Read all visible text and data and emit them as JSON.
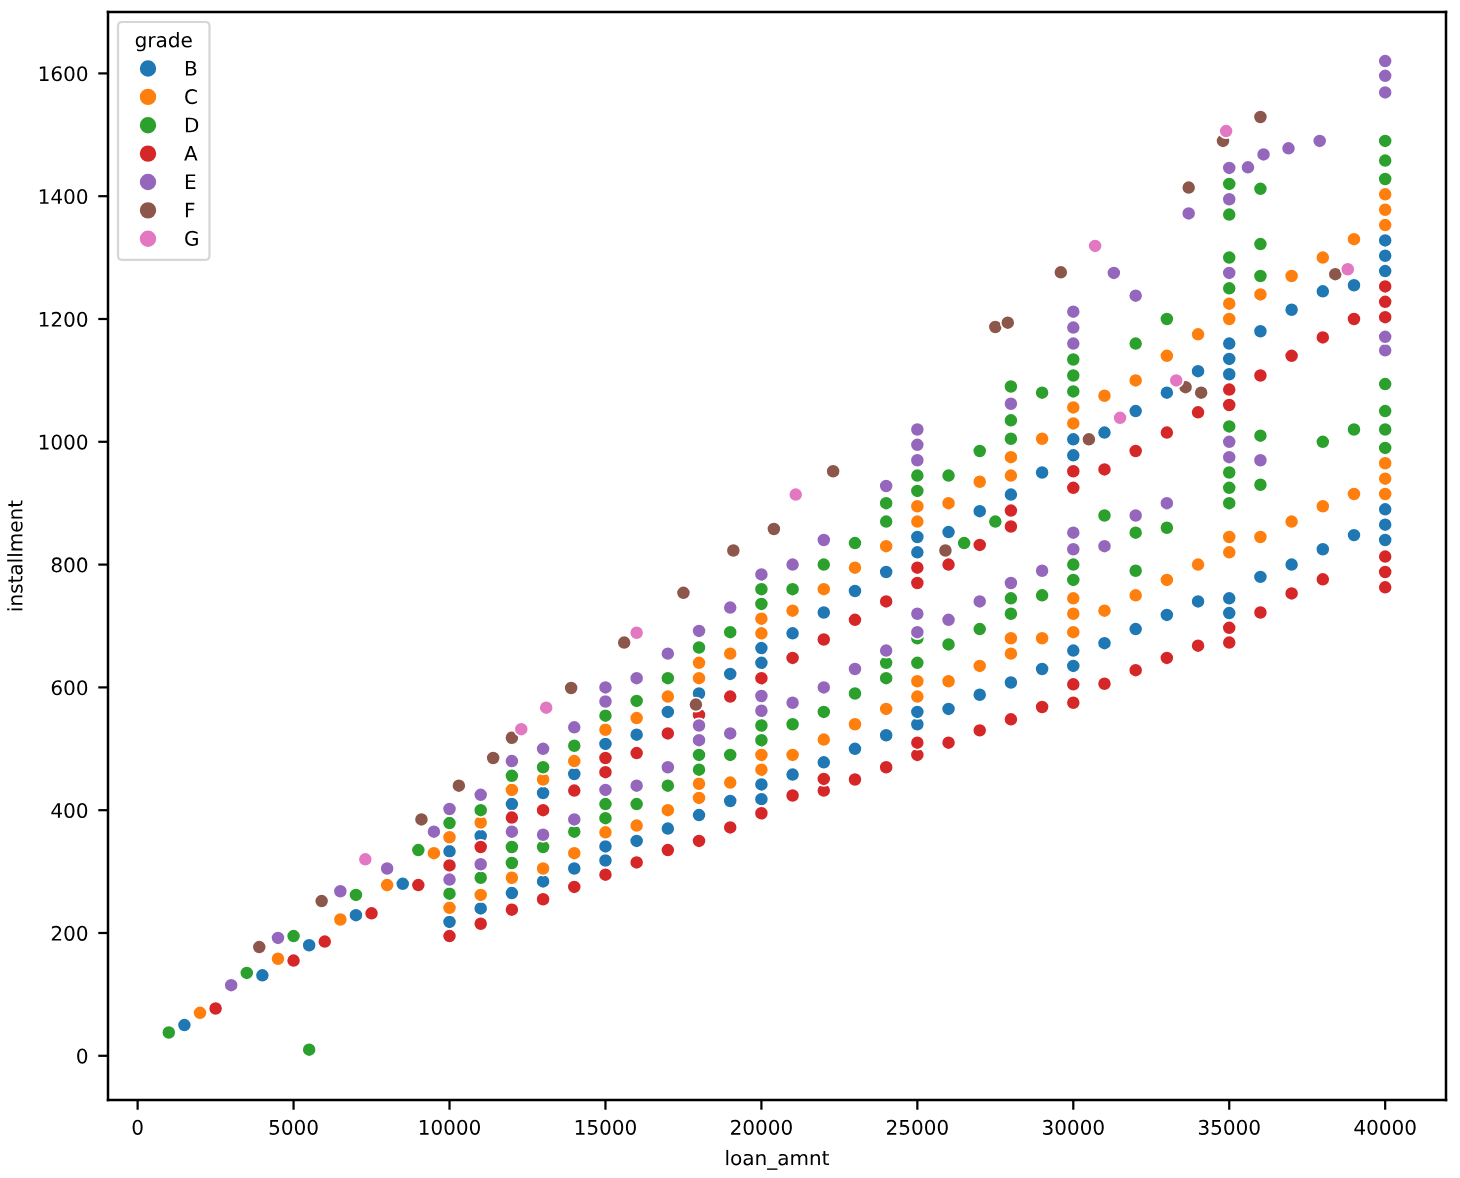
{
  "chart_data": {
    "type": "scatter",
    "xlabel": "loan_amnt",
    "ylabel": "installment",
    "legend_title": "grade",
    "legend": "top left",
    "marker": "circle",
    "xlim": [
      -950,
      41950
    ],
    "ylim": [
      -72,
      1700
    ],
    "xticks": [
      0,
      5000,
      10000,
      15000,
      20000,
      25000,
      30000,
      35000,
      40000
    ],
    "yticks": [
      0,
      200,
      400,
      600,
      800,
      1000,
      1200,
      1400,
      1600
    ],
    "series": [
      {
        "name": "B",
        "color": "#1f77b4",
        "x": [
          1500,
          4000,
          5500,
          7000,
          8500,
          10000,
          11000,
          12000,
          13000,
          14000,
          15000,
          16000,
          17000,
          18000,
          19000,
          20000,
          20000,
          21000,
          22000,
          23000,
          24000,
          25000,
          25000,
          26000,
          27000,
          28000,
          29000,
          30000,
          30000,
          31000,
          32000,
          33000,
          34000,
          35000,
          35000,
          35000,
          36000,
          37000,
          38000,
          39000,
          40000,
          40000,
          40000,
          10000,
          11000,
          12000,
          13000,
          14000,
          15000,
          15000,
          16000,
          17000,
          18000,
          19000,
          20000,
          20000,
          21000,
          22000,
          23000,
          24000,
          25000,
          25000,
          26000,
          27000,
          28000,
          29000,
          30000,
          30000,
          31000,
          32000,
          33000,
          34000,
          35000,
          35000,
          36000,
          37000,
          38000,
          39000,
          40000,
          40000,
          40000
        ],
        "values": [
          50,
          131,
          180,
          229,
          280,
          333,
          358,
          410,
          428,
          459,
          508,
          523,
          560,
          590,
          622,
          640,
          664,
          688,
          722,
          757,
          788,
          820,
          845,
          853,
          887,
          914,
          950,
          978,
          1004,
          1015,
          1050,
          1080,
          1115,
          1110,
          1135,
          1160,
          1180,
          1215,
          1245,
          1255,
          1278,
          1303,
          1328,
          218,
          240,
          265,
          284,
          305,
          318,
          341,
          350,
          370,
          392,
          415,
          418,
          442,
          458,
          478,
          500,
          522,
          540,
          560,
          565,
          588,
          608,
          630,
          635,
          660,
          672,
          695,
          718,
          740,
          721,
          745,
          780,
          800,
          825,
          848,
          840,
          865,
          890
        ]
      },
      {
        "name": "C",
        "color": "#ff7f0e",
        "x": [
          2000,
          4500,
          6500,
          8000,
          9500,
          10000,
          11000,
          12000,
          13000,
          14000,
          15000,
          16000,
          17000,
          18000,
          18000,
          19000,
          20000,
          20000,
          21000,
          22000,
          23000,
          24000,
          25000,
          25000,
          26000,
          27000,
          28000,
          28000,
          29000,
          30000,
          30000,
          31000,
          32000,
          33000,
          34000,
          35000,
          35000,
          36000,
          37000,
          38000,
          39000,
          40000,
          40000,
          40000,
          10000,
          11000,
          12000,
          13000,
          14000,
          15000,
          16000,
          17000,
          18000,
          18000,
          19000,
          20000,
          20000,
          21000,
          22000,
          23000,
          24000,
          25000,
          25000,
          26000,
          27000,
          28000,
          28000,
          29000,
          30000,
          30000,
          30000,
          31000,
          32000,
          33000,
          34000,
          35000,
          35000,
          36000,
          37000,
          38000,
          39000,
          40000,
          40000,
          40000
        ],
        "values": [
          70,
          158,
          222,
          278,
          330,
          356,
          380,
          433,
          450,
          480,
          531,
          550,
          585,
          615,
          640,
          655,
          688,
          712,
          725,
          760,
          795,
          830,
          870,
          895,
          900,
          935,
          945,
          975,
          1005,
          1030,
          1056,
          1075,
          1100,
          1140,
          1175,
          1200,
          1225,
          1240,
          1270,
          1300,
          1330,
          1353,
          1378,
          1403,
          241,
          262,
          290,
          305,
          330,
          364,
          375,
          400,
          420,
          443,
          445,
          466,
          490,
          490,
          515,
          540,
          565,
          585,
          610,
          610,
          635,
          655,
          680,
          680,
          690,
          720,
          745,
          725,
          750,
          775,
          800,
          820,
          845,
          845,
          870,
          895,
          915,
          915,
          940,
          965
        ]
      },
      {
        "name": "D",
        "color": "#2ca02c",
        "x": [
          1000,
          3500,
          5000,
          7000,
          9000,
          10000,
          11000,
          12000,
          13000,
          14000,
          15000,
          16000,
          17000,
          18000,
          19000,
          20000,
          20000,
          21000,
          22000,
          23000,
          24000,
          24000,
          25000,
          25000,
          26000,
          27000,
          28000,
          28000,
          28000,
          29000,
          30000,
          30000,
          30000,
          32000,
          33000,
          35000,
          35000,
          35000,
          35000,
          36000,
          36000,
          36000,
          40000,
          40000,
          40000,
          5500,
          10000,
          11000,
          12000,
          12000,
          13000,
          14000,
          15000,
          15000,
          16000,
          17000,
          18000,
          18000,
          19000,
          20000,
          20000,
          21000,
          22000,
          23000,
          24000,
          24000,
          25000,
          25000,
          26000,
          26500,
          27000,
          27500,
          28000,
          28000,
          29000,
          30000,
          30000,
          31000,
          32000,
          32000,
          33000,
          35000,
          35000,
          35000,
          35000,
          36000,
          36000,
          38000,
          39000,
          40000,
          40000,
          40000,
          40000
        ],
        "values": [
          38,
          135,
          195,
          262,
          335,
          379,
          400,
          456,
          470,
          505,
          554,
          578,
          615,
          665,
          690,
          736,
          760,
          760,
          800,
          835,
          870,
          900,
          920,
          945,
          945,
          985,
          1005,
          1035,
          1090,
          1080,
          1082,
          1108,
          1134,
          1160,
          1200,
          1250,
          1300,
          1370,
          1420,
          1270,
          1322,
          1412,
          1428,
          1458,
          1490,
          10,
          264,
          290,
          314,
          340,
          340,
          365,
          387,
          410,
          410,
          440,
          466,
          490,
          490,
          514,
          538,
          540,
          560,
          590,
          615,
          640,
          640,
          680,
          670,
          835,
          695,
          870,
          720,
          745,
          750,
          775,
          800,
          880,
          790,
          852,
          860,
          900,
          925,
          950,
          1025,
          930,
          1010,
          1000,
          1020,
          990,
          1020,
          1050,
          1094
        ]
      },
      {
        "name": "A",
        "color": "#d62728",
        "x": [
          2500,
          5000,
          6000,
          7500,
          9000,
          10000,
          11000,
          12000,
          13000,
          14000,
          15000,
          15000,
          16000,
          17000,
          18000,
          19000,
          20000,
          21000,
          22000,
          23000,
          24000,
          25000,
          25000,
          26000,
          27000,
          28000,
          28000,
          30000,
          30000,
          31000,
          32000,
          33000,
          34000,
          35000,
          35000,
          36000,
          37000,
          38000,
          39000,
          40000,
          40000,
          40000,
          10000,
          11000,
          12000,
          13000,
          14000,
          15000,
          16000,
          17000,
          18000,
          19000,
          20000,
          21000,
          22000,
          22000,
          23000,
          24000,
          25000,
          25000,
          26000,
          27000,
          28000,
          29000,
          30000,
          30000,
          31000,
          32000,
          33000,
          34000,
          35000,
          35000,
          36000,
          37000,
          38000,
          40000,
          40000,
          40000
        ],
        "values": [
          77,
          155,
          186,
          232,
          278,
          310,
          340,
          388,
          400,
          432,
          462,
          485,
          493,
          525,
          555,
          585,
          615,
          648,
          678,
          710,
          740,
          770,
          795,
          800,
          832,
          862,
          888,
          925,
          952,
          955,
          985,
          1015,
          1048,
          1060,
          1085,
          1108,
          1140,
          1170,
          1200,
          1203,
          1228,
          1253,
          195,
          215,
          238,
          255,
          275,
          295,
          315,
          335,
          350,
          372,
          395,
          424,
          432,
          451,
          450,
          470,
          490,
          510,
          510,
          530,
          548,
          568,
          575,
          605,
          606,
          628,
          648,
          668,
          673,
          697,
          722,
          753,
          776,
          763,
          788,
          813
        ]
      },
      {
        "name": "E",
        "color": "#9467bd",
        "x": [
          3000,
          4500,
          6500,
          8000,
          9500,
          10000,
          11000,
          12000,
          13000,
          14000,
          15000,
          15000,
          16000,
          17000,
          18000,
          19000,
          20000,
          21000,
          22000,
          24000,
          25000,
          25000,
          25000,
          28000,
          30000,
          30000,
          30000,
          31300,
          32000,
          33700,
          35000,
          35000,
          35000,
          35600,
          36100,
          36900,
          37900,
          40000,
          40000,
          40000,
          10000,
          11000,
          12000,
          13000,
          14000,
          15000,
          16000,
          17000,
          18000,
          18000,
          19000,
          20000,
          20000,
          21000,
          22000,
          23000,
          24000,
          25000,
          25000,
          26000,
          27000,
          28000,
          29000,
          30000,
          30000,
          31000,
          32000,
          33000,
          35000,
          35000,
          36000,
          40000,
          40000
        ],
        "values": [
          115,
          192,
          268,
          305,
          365,
          402,
          425,
          480,
          500,
          535,
          577,
          600,
          615,
          655,
          692,
          730,
          784,
          800,
          840,
          928,
          970,
          995,
          1020,
          1062,
          1160,
          1186,
          1212,
          1275,
          1238,
          1372,
          1275,
          1395,
          1446,
          1447,
          1468,
          1478,
          1490,
          1569,
          1596,
          1620,
          287,
          312,
          365,
          360,
          385,
          433,
          440,
          470,
          514,
          538,
          525,
          562,
          586,
          575,
          600,
          630,
          660,
          690,
          720,
          710,
          740,
          770,
          790,
          825,
          852,
          830,
          880,
          900,
          975,
          1000,
          970,
          1149,
          1171
        ]
      },
      {
        "name": "F",
        "color": "#8c564b",
        "x": [
          3900,
          5900,
          9100,
          10300,
          11400,
          12000,
          13900,
          15600,
          17500,
          17900,
          19100,
          20400,
          22300,
          25900,
          27500,
          27900,
          29600,
          30500,
          33600,
          33700,
          34100,
          34800,
          36000,
          38400
        ],
        "values": [
          177,
          252,
          385,
          440,
          485,
          518,
          599,
          673,
          754,
          572,
          823,
          858,
          952,
          823,
          1187,
          1194,
          1276,
          1004,
          1089,
          1414,
          1080,
          1490,
          1529,
          1273
        ]
      },
      {
        "name": "G",
        "color": "#e377c2",
        "x": [
          7300,
          12300,
          13100,
          16000,
          21100,
          30700,
          31500,
          33300,
          34900,
          38800
        ],
        "values": [
          320,
          532,
          567,
          689,
          914,
          1319,
          1039,
          1100,
          1506,
          1281
        ]
      }
    ]
  }
}
